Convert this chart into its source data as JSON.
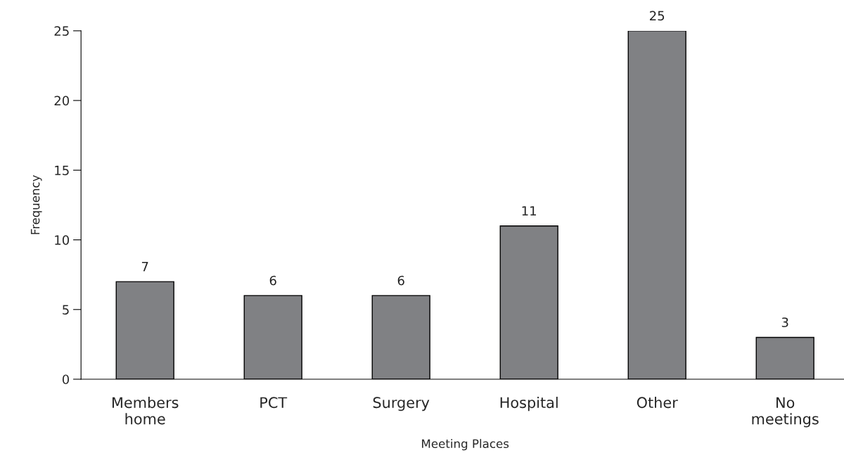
{
  "chart_data": {
    "type": "bar",
    "categories": [
      "Members\nhome",
      "PCT",
      "Surgery",
      "Hospital",
      "Other",
      "No\nmeetings"
    ],
    "values": [
      7,
      6,
      6,
      11,
      25,
      3
    ],
    "color": "#808184",
    "xlabel": "Meeting Places",
    "ylabel": "Frequency",
    "ylim": [
      0,
      25
    ],
    "yticks": [
      0,
      5,
      10,
      15,
      20,
      25
    ],
    "grid": false,
    "data_labels": true
  }
}
